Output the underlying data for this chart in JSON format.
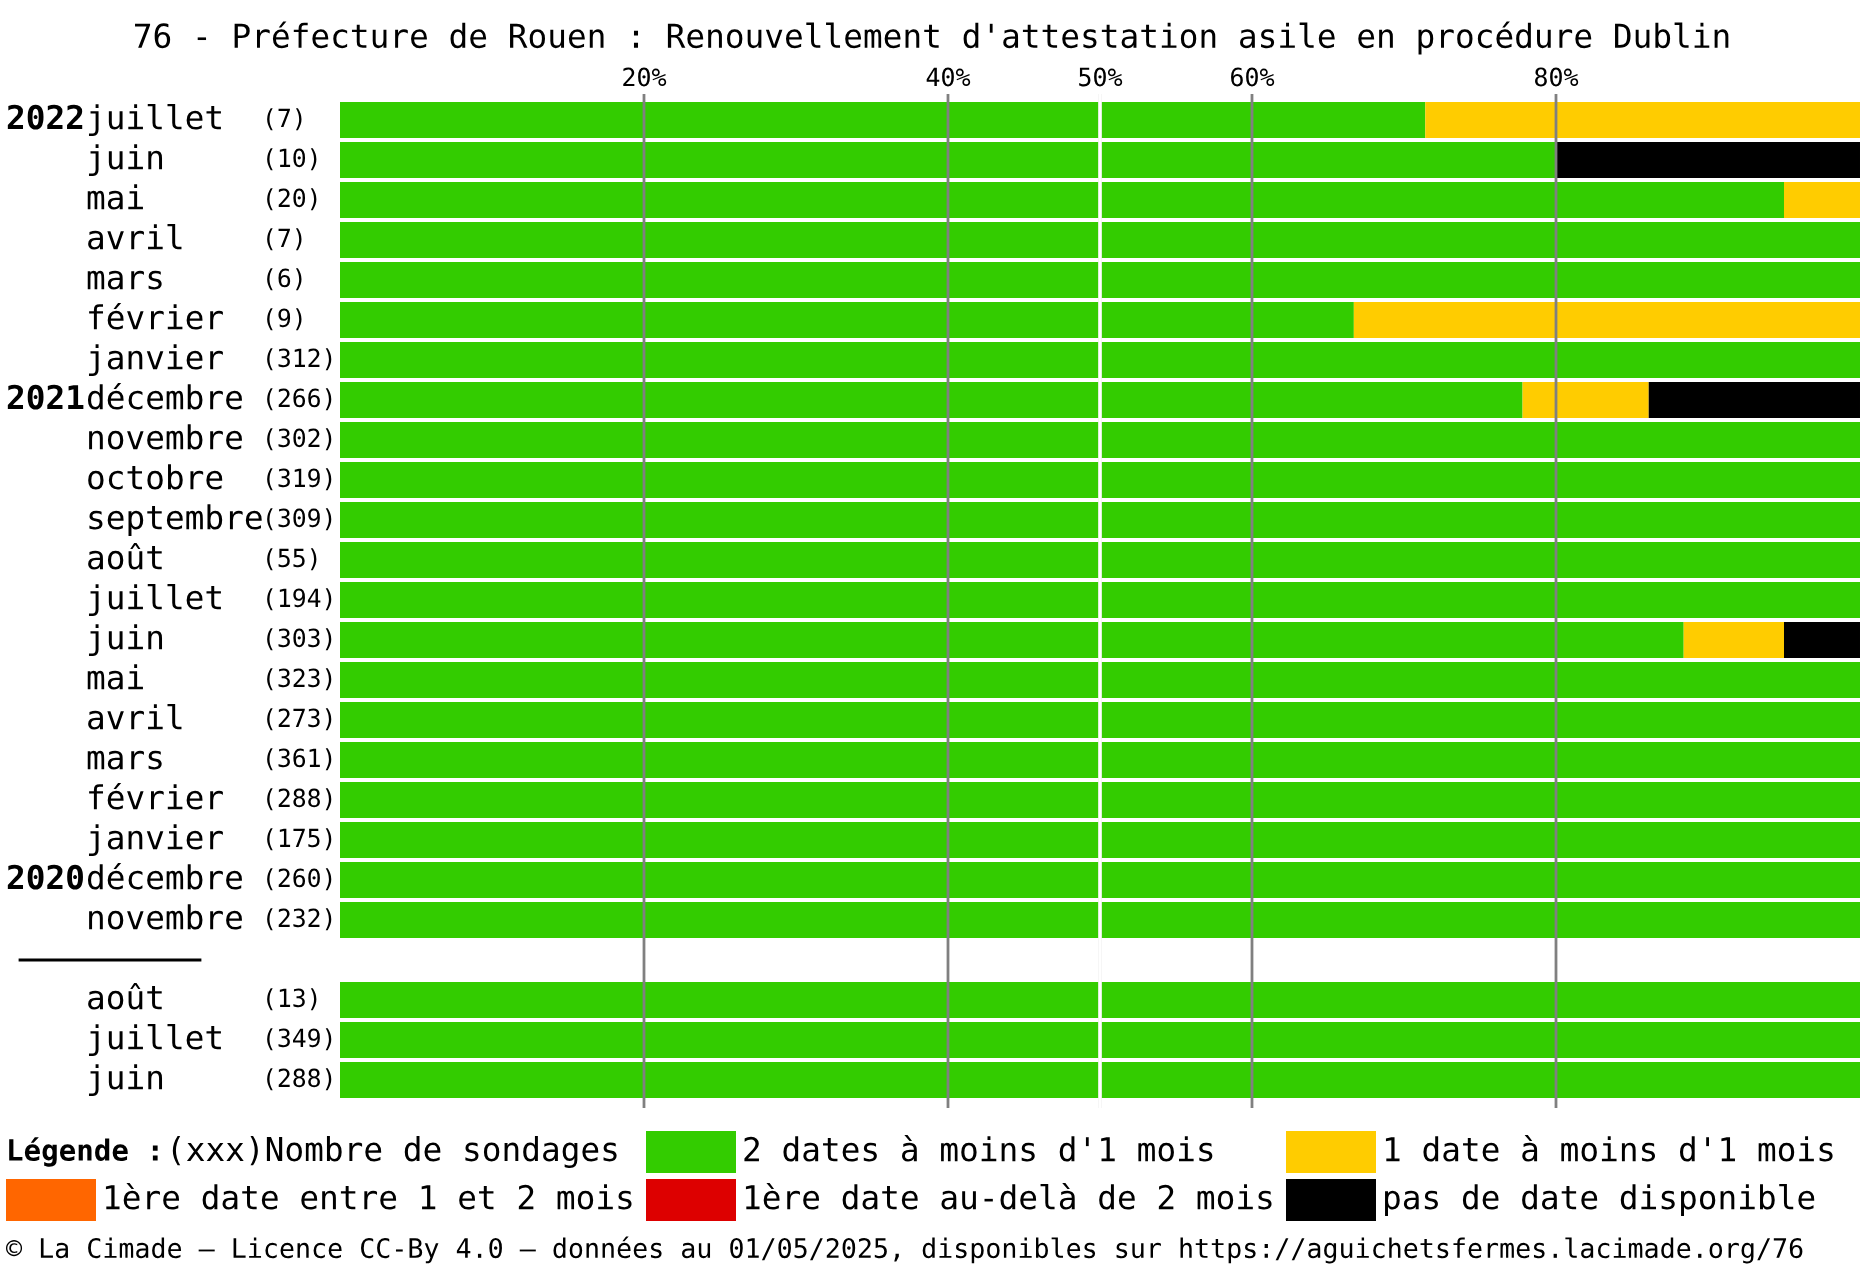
{
  "chart_data": {
    "type": "bar",
    "orientation": "horizontal",
    "stacked": true,
    "title": "76 - Préfecture de Rouen : Renouvellement d'attestation asile en procédure Dublin",
    "categories": [
      "2022 juillet (7)",
      "juin (10)",
      "mai (20)",
      "avril (7)",
      "mars (6)",
      "février (9)",
      "janvier (312)",
      "2021 décembre (266)",
      "novembre (302)",
      "octobre (319)",
      "septembre (309)",
      "août (55)",
      "juillet (194)",
      "juin (303)",
      "mai (323)",
      "avril (273)",
      "mars (361)",
      "février (288)",
      "janvier (175)",
      "2020 décembre (260)",
      "novembre (232)",
      null,
      "août (13)",
      "juillet (349)",
      "juin (288)"
    ],
    "series": [
      {
        "name": "2 dates à moins d'1 mois",
        "color": "#33cc00",
        "values": [
          71.4,
          80,
          95,
          100,
          100,
          66.7,
          100,
          77.8,
          100,
          100,
          100,
          100,
          100,
          88.4,
          100,
          100,
          100,
          100,
          100,
          100,
          100,
          null,
          100,
          100,
          100
        ]
      },
      {
        "name": "1 date à moins d'1 mois",
        "color": "#ffcc00",
        "values": [
          28.6,
          0,
          5,
          0,
          0,
          33.3,
          0,
          8.3,
          0,
          0,
          0,
          0,
          0,
          6.6,
          0,
          0,
          0,
          0,
          0,
          0,
          0,
          null,
          0,
          0,
          0
        ]
      },
      {
        "name": "1ère date entre 1 et 2 mois",
        "color": "#ff6600",
        "values": [
          0,
          0,
          0,
          0,
          0,
          0,
          0,
          0,
          0,
          0,
          0,
          0,
          0,
          0,
          0,
          0,
          0,
          0,
          0,
          0,
          0,
          null,
          0,
          0,
          0
        ]
      },
      {
        "name": "1ère date au-delà de 2 mois",
        "color": "#dd0000",
        "values": [
          0,
          0,
          0,
          0,
          0,
          0,
          0,
          0,
          0,
          0,
          0,
          0,
          0,
          0,
          0,
          0,
          0,
          0,
          0,
          0,
          0,
          null,
          0,
          0,
          0
        ]
      },
      {
        "name": "pas de date disponible",
        "color": "#000000",
        "values": [
          0,
          20,
          0,
          0,
          0,
          0,
          0,
          13.9,
          0,
          0,
          0,
          0,
          0,
          5.0,
          0,
          0,
          0,
          0,
          0,
          0,
          0,
          null,
          0,
          0,
          0
        ]
      }
    ],
    "xlim": [
      0,
      100
    ],
    "xticks": [
      {
        "value": 20,
        "label": "20%"
      },
      {
        "value": 40,
        "label": "40%"
      },
      {
        "value": 50,
        "label": "50%"
      },
      {
        "value": 60,
        "label": "60%"
      },
      {
        "value": 80,
        "label": "80%"
      }
    ],
    "grid": "x",
    "ref_lines": [
      {
        "axis": "x",
        "value": 50,
        "color": "#ffffff"
      }
    ],
    "legend": "bottom",
    "legend_title": "Légende :",
    "annotations": [
      "(xxx)Nombre de sondages",
      "© La Cimade — Licence CC-By 4.0 — données au 01/05/2025, disponibles sur https://aguichetsfermes.lacimade.org/76"
    ]
  }
}
